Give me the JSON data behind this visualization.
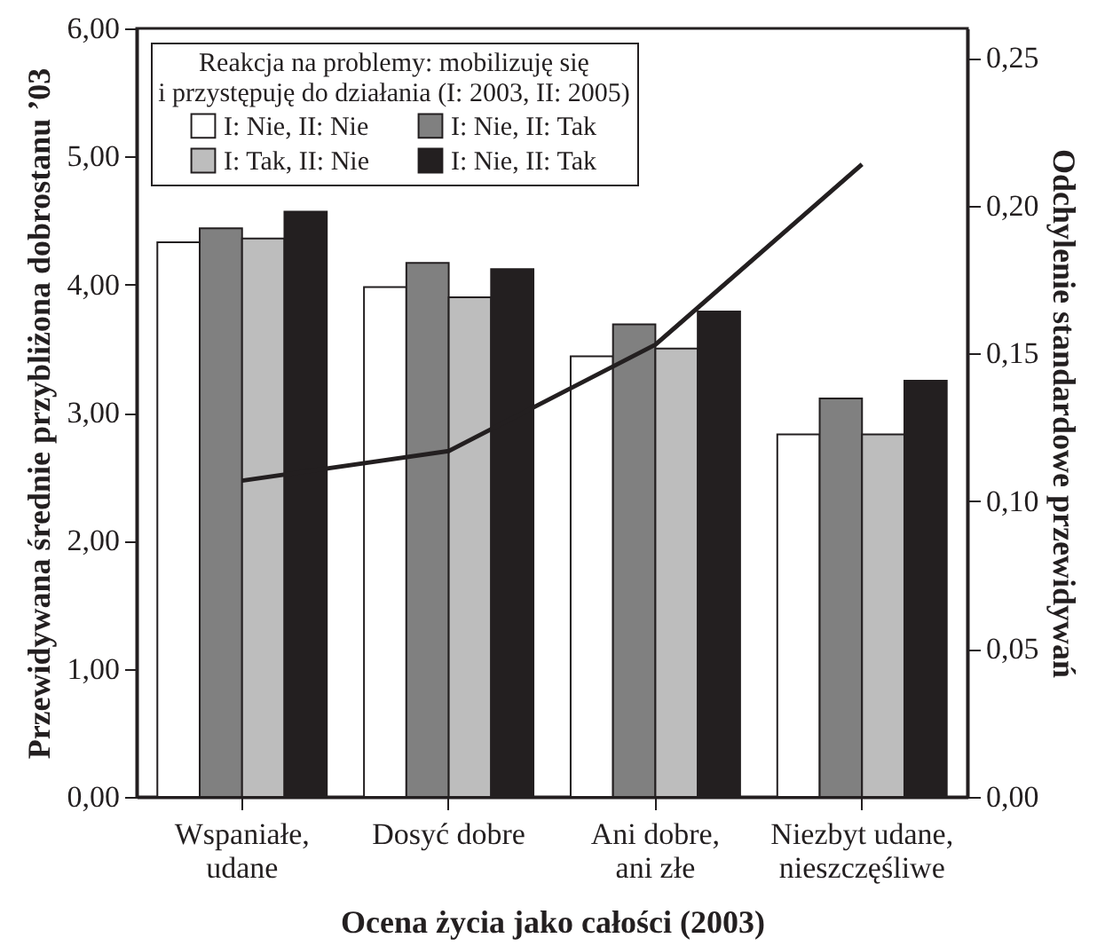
{
  "chart_data": {
    "type": "bar",
    "xlabel": "Ocena życia jako całości (2003)",
    "ylabel": "Przewidywana średnie przybliżona dobrostanu ’03",
    "y2label": "Odchylenie standardowe przewidywań",
    "legend_title": "Reakcja na problemy: mobilizuję się\ni przystępuję do działania (I: 2003, II: 2005)",
    "legend": "top left",
    "grid": false,
    "categories": [
      "Wspaniałe, udane",
      "Dosyć dobre",
      "Ani dobre, ani złe",
      "Niezbyt udane, nieszczęśliwe"
    ],
    "series": [
      {
        "name": "I: Nie, II: Nie",
        "color": "#ffffff",
        "values": [
          4.33,
          3.98,
          3.44,
          2.83
        ]
      },
      {
        "name": "I: Nie, II: Tak",
        "color": "#808080",
        "values": [
          4.44,
          4.17,
          3.69,
          3.11
        ]
      },
      {
        "name": "I: Tak, II: Nie",
        "color": "#bdbdbd",
        "values": [
          4.36,
          3.9,
          3.5,
          2.83
        ]
      },
      {
        "name": "I: Nie, II: Tak",
        "color": "#231f20",
        "values": [
          4.57,
          4.12,
          3.79,
          3.25
        ]
      },
      {
        "type": "line",
        "axis": "y2",
        "color": "#231f20",
        "values": [
          0.107,
          0.117,
          0.153,
          0.214
        ]
      }
    ],
    "ylim": [
      0,
      6
    ],
    "yticks": [
      {
        "value": 0,
        "label": "0,00"
      },
      {
        "value": 1,
        "label": "1,00"
      },
      {
        "value": 2,
        "label": "2,00"
      },
      {
        "value": 3,
        "label": "3,00"
      },
      {
        "value": 4,
        "label": "4,00"
      },
      {
        "value": 5,
        "label": "5,00"
      },
      {
        "value": 6,
        "label": "6,00"
      }
    ],
    "y2lim": [
      0,
      0.26
    ],
    "y2ticks": [
      {
        "value": 0,
        "label": "0,00"
      },
      {
        "value": 0.05,
        "label": "0,05"
      },
      {
        "value": 0.1,
        "label": "0,10"
      },
      {
        "value": 0.15,
        "label": "0,15"
      },
      {
        "value": 0.2,
        "label": "0,20"
      },
      {
        "value": 0.25,
        "label": "0,25"
      }
    ]
  }
}
